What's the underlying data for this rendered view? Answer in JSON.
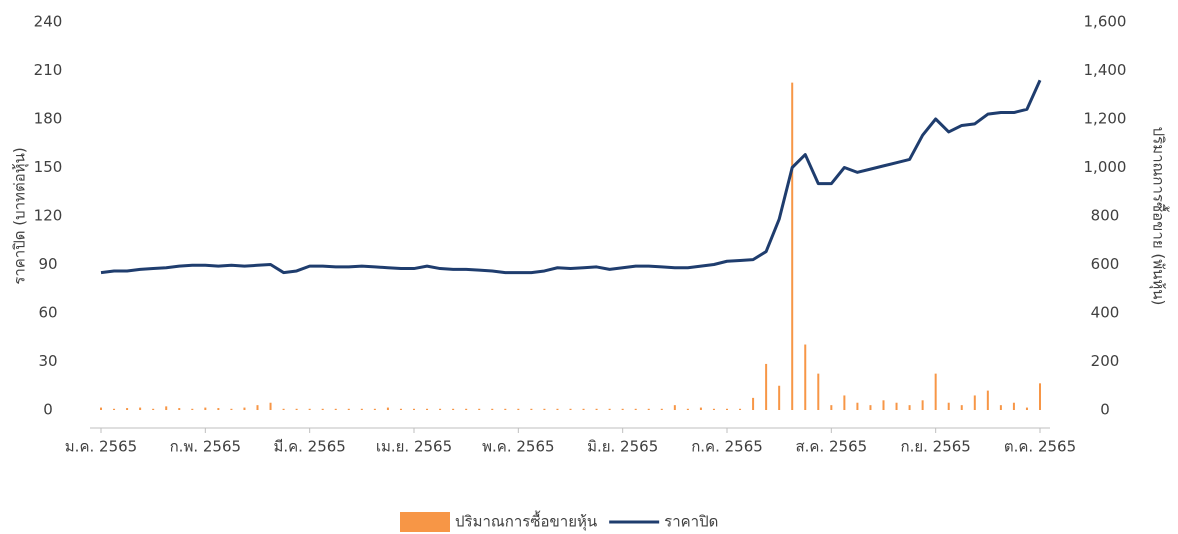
{
  "chart_data": {
    "type": "combo",
    "categories": [
      "ม.ค. 2565",
      null,
      null,
      null,
      null,
      null,
      null,
      null,
      "ก.พ. 2565",
      null,
      null,
      null,
      null,
      null,
      null,
      null,
      "มี.ค. 2565",
      null,
      null,
      null,
      null,
      null,
      null,
      null,
      "เม.ย. 2565",
      null,
      null,
      null,
      null,
      null,
      null,
      null,
      "พ.ค. 2565",
      null,
      null,
      null,
      null,
      null,
      null,
      null,
      "มิ.ย. 2565",
      null,
      null,
      null,
      null,
      null,
      null,
      null,
      "ก.ค. 2565",
      null,
      null,
      null,
      null,
      null,
      null,
      null,
      "ส.ค. 2565",
      null,
      null,
      null,
      null,
      null,
      null,
      null,
      "ก.ย. 2565",
      null,
      null,
      null,
      null,
      null,
      null,
      null,
      "ต.ค. 2565"
    ],
    "series": [
      {
        "name": "ปริมาณการซื้อขายหุ้น",
        "type": "bar",
        "axis": "y2",
        "color": "#f79646",
        "values": [
          10,
          5,
          8,
          10,
          5,
          15,
          8,
          5,
          10,
          8,
          5,
          10,
          20,
          30,
          5,
          5,
          5,
          5,
          5,
          5,
          5,
          5,
          10,
          5,
          5,
          5,
          5,
          5,
          5,
          5,
          5,
          5,
          5,
          5,
          5,
          5,
          5,
          5,
          5,
          5,
          5,
          5,
          5,
          5,
          20,
          5,
          10,
          5,
          5,
          5,
          50,
          190,
          100,
          1350,
          270,
          150,
          20,
          60,
          30,
          20,
          40,
          30,
          20,
          40,
          150,
          30,
          20,
          60,
          80,
          20,
          30,
          10,
          110
        ]
      },
      {
        "name": "ราคาปิด",
        "type": "line",
        "color": "#1f3d6e",
        "values": [
          85,
          86,
          86,
          87,
          87.5,
          88,
          89,
          89.5,
          89.5,
          89,
          89.5,
          89,
          89.5,
          90,
          85,
          86,
          89,
          89,
          88.5,
          88.5,
          89,
          88.5,
          88,
          87.5,
          87.5,
          89,
          87.5,
          87,
          87,
          86.5,
          86,
          85,
          85,
          85,
          86,
          88,
          87.5,
          88,
          88.5,
          87,
          88,
          89,
          89,
          88.5,
          88,
          88,
          89,
          90,
          92,
          92.5,
          93,
          98,
          118,
          150,
          158,
          140,
          140,
          150,
          147,
          149,
          151,
          153,
          155,
          170,
          180,
          172,
          176,
          177,
          183,
          184,
          184,
          186,
          204
        ]
      }
    ],
    "y_label": "ราคาปิด (บาทต่อหุ้น)",
    "y2_label": "ปริมาณการซื้อขาย (พันหุ้น)",
    "ylim": [
      0,
      240
    ],
    "yticks": [
      0,
      30,
      60,
      90,
      120,
      150,
      180,
      210,
      240
    ],
    "y2lim": [
      0,
      1600
    ],
    "y2ticks": [
      0,
      200,
      400,
      600,
      800,
      {
        "value": 1000,
        "label": "1,000"
      },
      {
        "value": 1200,
        "label": "1,200"
      },
      {
        "value": 1400,
        "label": "1,400"
      },
      {
        "value": 1600,
        "label": "1,600"
      }
    ],
    "legend": "bottom"
  }
}
